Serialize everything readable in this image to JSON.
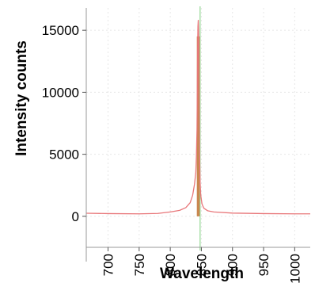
{
  "chart_data": {
    "type": "line",
    "xlabel": "Wavelength",
    "ylabel": "Intensity counts",
    "xlim": [
      665,
      1025
    ],
    "ylim": [
      -2500,
      16800
    ],
    "x_ticks": [
      700,
      750,
      800,
      850,
      900,
      950,
      1000
    ],
    "x_tick_labels": [
      "700",
      "750",
      "800",
      "850",
      "900",
      "950",
      "1000"
    ],
    "y_ticks": [
      0,
      5000,
      10000,
      15000
    ],
    "y_tick_labels": [
      "0",
      "5000",
      "10000",
      "15000"
    ],
    "grid": true,
    "series": [
      {
        "color": "#e8777a",
        "x": [
          665,
          700,
          750,
          780,
          800,
          815,
          825,
          832,
          836,
          839,
          841,
          842,
          843,
          843.5,
          844,
          844.5,
          845,
          845.5,
          846,
          846.5,
          847,
          848,
          849,
          851,
          854,
          860,
          870,
          900,
          950,
          1000,
          1025
        ],
        "y": [
          250,
          220,
          200,
          230,
          350,
          480,
          700,
          1100,
          1700,
          2600,
          3500,
          4800,
          7000,
          10000,
          13500,
          15300,
          15800,
          15000,
          12000,
          8500,
          5200,
          2700,
          1700,
          1000,
          650,
          450,
          350,
          260,
          220,
          200,
          200
        ]
      }
    ],
    "highlight_bar": {
      "x": 845,
      "y": 14500,
      "color": "#c9874f"
    },
    "marker_line": {
      "x": 848,
      "color": "#7ed07e"
    }
  }
}
